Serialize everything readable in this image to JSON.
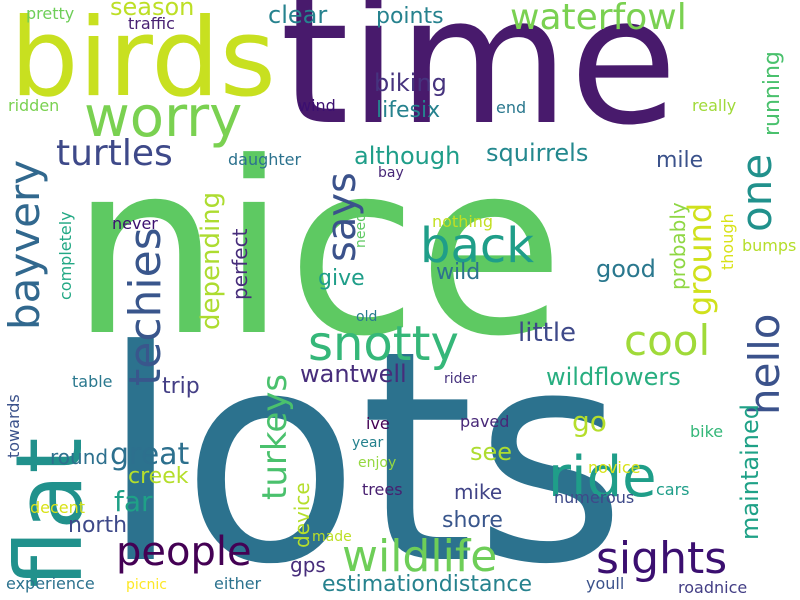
{
  "words": [
    {
      "text": "nice",
      "color": "#5ec962"
    },
    {
      "text": "lots",
      "color": "#2c728e"
    },
    {
      "text": "time",
      "color": "#481a6c"
    },
    {
      "text": "birds",
      "color": "#c8e020"
    },
    {
      "text": "flat",
      "color": "#21918c"
    },
    {
      "text": "worry",
      "color": "#7ad151"
    },
    {
      "text": "ride",
      "color": "#1f9e89"
    },
    {
      "text": "sights",
      "color": "#3b0f70"
    },
    {
      "text": "wildlife",
      "color": "#6ece58"
    },
    {
      "text": "people",
      "color": "#440154"
    },
    {
      "text": "snotty",
      "color": "#35b779"
    },
    {
      "text": "back",
      "color": "#1f9e89"
    },
    {
      "text": "cool",
      "color": "#a0da39"
    },
    {
      "text": "hello",
      "color": "#3b528b"
    },
    {
      "text": "one",
      "color": "#21918c"
    },
    {
      "text": "techies",
      "color": "#39568c"
    },
    {
      "text": "bayvery",
      "color": "#31688e"
    },
    {
      "text": "turtles",
      "color": "#3e4989"
    },
    {
      "text": "waterfowl",
      "color": "#7ad151"
    },
    {
      "text": "says",
      "color": "#3b528b"
    },
    {
      "text": "ground",
      "color": "#d0e11c"
    },
    {
      "text": "turkeys",
      "color": "#4ac16d"
    },
    {
      "text": "running",
      "color": "#4ac16d"
    },
    {
      "text": "season",
      "color": "#bddf26"
    },
    {
      "text": "clear",
      "color": "#26828e"
    },
    {
      "text": "points",
      "color": "#26828e"
    },
    {
      "text": "biking",
      "color": "#46337e"
    },
    {
      "text": "lifesix",
      "color": "#26828e"
    },
    {
      "text": "although",
      "color": "#1f9e89"
    },
    {
      "text": "squirrels",
      "color": "#23888e"
    },
    {
      "text": "wantwell",
      "color": "#472d7b"
    },
    {
      "text": "wildflowers",
      "color": "#28ae80"
    },
    {
      "text": "maintained",
      "color": "#1fa187"
    },
    {
      "text": "depending",
      "color": "#addc30"
    },
    {
      "text": "great",
      "color": "#2d708e"
    },
    {
      "text": "creek",
      "color": "#b5de2b"
    },
    {
      "text": "far",
      "color": "#1fa187"
    },
    {
      "text": "north",
      "color": "#3e4989"
    },
    {
      "text": "device",
      "color": "#b5de2b"
    },
    {
      "text": "gps",
      "color": "#472d7b"
    },
    {
      "text": "estimationdistance",
      "color": "#26828e"
    },
    {
      "text": "shore",
      "color": "#39568c"
    },
    {
      "text": "mike",
      "color": "#414487"
    },
    {
      "text": "see",
      "color": "#addc30"
    },
    {
      "text": "go",
      "color": "#b5de2b"
    },
    {
      "text": "little",
      "color": "#3e4989"
    },
    {
      "text": "good",
      "color": "#2a788e"
    },
    {
      "text": "wild",
      "color": "#2c728e"
    },
    {
      "text": "give",
      "color": "#1f9e89"
    },
    {
      "text": "trip",
      "color": "#433e85"
    },
    {
      "text": "round",
      "color": "#2d708e"
    },
    {
      "text": "mile",
      "color": "#3b528b"
    },
    {
      "text": "perfect",
      "color": "#472d7b"
    },
    {
      "text": "probably",
      "color": "#8fd744"
    },
    {
      "text": "though",
      "color": "#d8e219"
    },
    {
      "text": "bumps",
      "color": "#b5de2b"
    },
    {
      "text": "nothing",
      "color": "#c2df23"
    },
    {
      "text": "need",
      "color": "#5ec962"
    },
    {
      "text": "completely",
      "color": "#22a884"
    },
    {
      "text": "never",
      "color": "#3b0f70"
    },
    {
      "text": "daughter",
      "color": "#2c728e"
    },
    {
      "text": "bay",
      "color": "#482878"
    },
    {
      "text": "wind",
      "color": "#3b0f70"
    },
    {
      "text": "end",
      "color": "#2a788e"
    },
    {
      "text": "really",
      "color": "#a0da39"
    },
    {
      "text": "ridden",
      "color": "#7ad151"
    },
    {
      "text": "pretty",
      "color": "#6ece58"
    },
    {
      "text": "traffic",
      "color": "#482173"
    },
    {
      "text": "old",
      "color": "#287c8e"
    },
    {
      "text": "table",
      "color": "#2a788e"
    },
    {
      "text": "towards",
      "color": "#3b528b"
    },
    {
      "text": "rider",
      "color": "#46327e"
    },
    {
      "text": "ive",
      "color": "#440154"
    },
    {
      "text": "year",
      "color": "#26828e"
    },
    {
      "text": "enjoy",
      "color": "#95d840"
    },
    {
      "text": "paved",
      "color": "#482878"
    },
    {
      "text": "novice",
      "color": "#d8e219"
    },
    {
      "text": "bike",
      "color": "#35b779"
    },
    {
      "text": "trees",
      "color": "#481f70"
    },
    {
      "text": "numerous",
      "color": "#3e4989"
    },
    {
      "text": "cars",
      "color": "#1f9e89"
    },
    {
      "text": "decent",
      "color": "#d8e219"
    },
    {
      "text": "made",
      "color": "#bddf26"
    },
    {
      "text": "experience",
      "color": "#2c728e"
    },
    {
      "text": "picnic",
      "color": "#fde725"
    },
    {
      "text": "either",
      "color": "#2c728e"
    },
    {
      "text": "youll",
      "color": "#3b528b"
    },
    {
      "text": "roadnice",
      "color": "#433e85"
    }
  ]
}
